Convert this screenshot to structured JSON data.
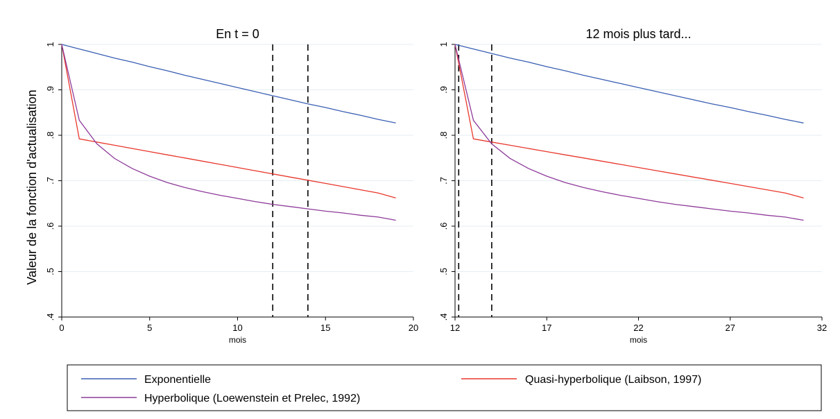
{
  "ylabel": "Valeur de la fonction d'actualisation",
  "legend": {
    "entries": [
      {
        "label": "Exponentielle",
        "color": "#3a5fb3"
      },
      {
        "label": "Quasi-hyperbolique (Laibson, 1997)",
        "color": "#e8372c"
      },
      {
        "label": "Hyperbolique (Loewenstein et Prelec, 1992)",
        "color": "#8e3b9a"
      }
    ]
  },
  "chart_data": [
    {
      "type": "line",
      "title": "En t = 0",
      "xlabel": "mois",
      "ylabel": "Valeur de la fonction d'actualisation",
      "xlim": [
        0,
        20
      ],
      "ylim": [
        0.4,
        1.0
      ],
      "xticks": [
        0,
        5,
        10,
        15,
        20
      ],
      "yticks": [
        0.4,
        0.5,
        0.6,
        0.7,
        0.8,
        0.9,
        1.0
      ],
      "ytick_labels": [
        ".4",
        ".5",
        ".6",
        ".7",
        ".8",
        ".9",
        "1"
      ],
      "grid": true,
      "vlines": [
        12,
        14
      ],
      "x": [
        0,
        1,
        2,
        3,
        4,
        5,
        6,
        7,
        8,
        9,
        10,
        11,
        12,
        13,
        14,
        15,
        16,
        17,
        18,
        19
      ],
      "series": [
        {
          "name": "Exponentielle",
          "color": "#3a5fb3",
          "values": [
            1.0,
            0.99,
            0.98,
            0.97,
            0.961,
            0.951,
            0.942,
            0.932,
            0.923,
            0.914,
            0.905,
            0.896,
            0.887,
            0.878,
            0.869,
            0.861,
            0.852,
            0.844,
            0.835,
            0.827
          ]
        },
        {
          "name": "Quasi-hyperbolique (Laibson, 1997)",
          "color": "#e8372c",
          "values": [
            1.0,
            0.792,
            0.785,
            0.778,
            0.771,
            0.764,
            0.757,
            0.75,
            0.743,
            0.736,
            0.729,
            0.722,
            0.715,
            0.708,
            0.701,
            0.694,
            0.687,
            0.68,
            0.673,
            0.662
          ]
        },
        {
          "name": "Hyperbolique (Loewenstein et Prelec, 1992)",
          "color": "#8e3b9a",
          "values": [
            1.0,
            0.833,
            0.781,
            0.749,
            0.727,
            0.71,
            0.696,
            0.685,
            0.676,
            0.668,
            0.661,
            0.654,
            0.648,
            0.643,
            0.638,
            0.633,
            0.629,
            0.624,
            0.62,
            0.613
          ]
        }
      ]
    },
    {
      "type": "line",
      "title": "12 mois plus tard...",
      "xlabel": "mois",
      "xlim": [
        12,
        32
      ],
      "ylim": [
        0.4,
        1.0
      ],
      "xticks": [
        12,
        17,
        22,
        27,
        32
      ],
      "yticks": [
        0.4,
        0.5,
        0.6,
        0.7,
        0.8,
        0.9,
        1.0
      ],
      "ytick_labels": [
        ".4",
        ".5",
        ".6",
        ".7",
        ".8",
        ".9",
        "1"
      ],
      "grid": true,
      "vlines": [
        12.2,
        14
      ],
      "x": [
        12,
        13,
        14,
        15,
        16,
        17,
        18,
        19,
        20,
        21,
        22,
        23,
        24,
        25,
        26,
        27,
        28,
        29,
        30,
        31
      ],
      "series": [
        {
          "name": "Exponentielle",
          "color": "#3a5fb3",
          "values": [
            1.0,
            0.99,
            0.98,
            0.97,
            0.961,
            0.951,
            0.942,
            0.932,
            0.923,
            0.914,
            0.905,
            0.896,
            0.887,
            0.878,
            0.869,
            0.861,
            0.852,
            0.844,
            0.835,
            0.827
          ]
        },
        {
          "name": "Quasi-hyperbolique (Laibson, 1997)",
          "color": "#e8372c",
          "values": [
            1.0,
            0.792,
            0.785,
            0.778,
            0.771,
            0.764,
            0.757,
            0.75,
            0.743,
            0.736,
            0.729,
            0.722,
            0.715,
            0.708,
            0.701,
            0.694,
            0.687,
            0.68,
            0.673,
            0.662
          ]
        },
        {
          "name": "Hyperbolique (Loewenstein et Prelec, 1992)",
          "color": "#8e3b9a",
          "values": [
            1.0,
            0.833,
            0.781,
            0.749,
            0.727,
            0.71,
            0.696,
            0.685,
            0.676,
            0.668,
            0.661,
            0.654,
            0.648,
            0.643,
            0.638,
            0.633,
            0.629,
            0.624,
            0.62,
            0.613
          ]
        }
      ]
    }
  ]
}
